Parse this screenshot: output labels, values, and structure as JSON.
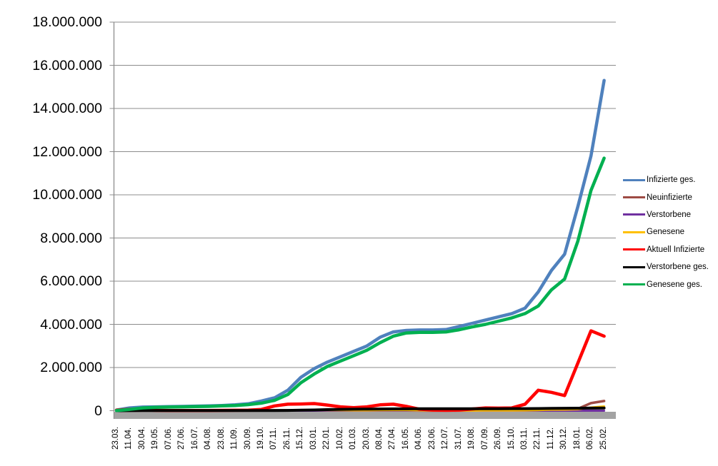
{
  "chart_data": {
    "type": "line",
    "title": "",
    "grid": true,
    "legend_position": "right",
    "x_tick_labels": [
      "23.03.",
      "11.04.",
      "30.04.",
      "19.05.",
      "07.06.",
      "27.06.",
      "16.07.",
      "04.08.",
      "23.08.",
      "11.09.",
      "30.09.",
      "19.10.",
      "07.11.",
      "26.11.",
      "15.12.",
      "03.01.",
      "22.01.",
      "10.02.",
      "01.03.",
      "20.03.",
      "08.04.",
      "27.04.",
      "16.05.",
      "04.06.",
      "23.06.",
      "12.07.",
      "31.07.",
      "19.08.",
      "07.09.",
      "26.09.",
      "15.10.",
      "03.11.",
      "22.11.",
      "11.12.",
      "30.12.",
      "18.01.",
      "06.02.",
      "25.02."
    ],
    "y_axis": {
      "min": 0,
      "max": 18000000,
      "tick_interval": 2000000,
      "tick_labels": [
        "0",
        "2.000.000",
        "4.000.000",
        "6.000.000",
        "8.000.000",
        "10.000.000",
        "12.000.000",
        "14.000.000",
        "16.000.000",
        "18.000.000"
      ]
    },
    "series": [
      {
        "name": "Infizierte ges.",
        "color": "#4F81BD",
        "line_width": 4.5,
        "values": [
          30000,
          130000,
          170000,
          180000,
          190000,
          200000,
          210000,
          220000,
          240000,
          270000,
          320000,
          450000,
          600000,
          950000,
          1550000,
          1950000,
          2250000,
          2500000,
          2750000,
          3000000,
          3400000,
          3650000,
          3720000,
          3740000,
          3740000,
          3760000,
          3900000,
          4050000,
          4200000,
          4350000,
          4500000,
          4750000,
          5500000,
          6500000,
          7250000,
          9450000,
          11800000,
          15300000
        ]
      },
      {
        "name": "Neuinfizierte",
        "color": "#9E4B44",
        "line_width": 3.5,
        "values": [
          4000,
          4000,
          2000,
          1000,
          500,
          500,
          800,
          1000,
          1200,
          1800,
          2500,
          7000,
          20000,
          18000,
          25000,
          22000,
          15000,
          9000,
          9000,
          16000,
          20000,
          18000,
          10000,
          4000,
          1000,
          1500,
          2500,
          8000,
          12000,
          8000,
          10000,
          20000,
          50000,
          60000,
          40000,
          90000,
          350000,
          450000
        ]
      },
      {
        "name": "Verstorbene",
        "color": "#7030A0",
        "line_width": 3,
        "values": [
          200,
          250,
          200,
          100,
          50,
          30,
          20,
          20,
          20,
          30,
          40,
          100,
          300,
          500,
          700,
          900,
          800,
          600,
          400,
          250,
          250,
          250,
          200,
          100,
          80,
          50,
          50,
          50,
          80,
          80,
          100,
          150,
          300,
          400,
          400,
          300,
          250,
          300
        ]
      },
      {
        "name": "Genesene",
        "color": "#FFC000",
        "line_width": 3,
        "values": [
          2000,
          4000,
          5000,
          3000,
          2000,
          1000,
          1000,
          2000,
          2000,
          2000,
          3000,
          5000,
          13000,
          18000,
          25000,
          30000,
          28000,
          20000,
          12000,
          14000,
          20000,
          25000,
          22000,
          12000,
          4000,
          2000,
          2000,
          4000,
          8000,
          8000,
          8000,
          12000,
          25000,
          45000,
          50000,
          65000,
          150000,
          200000
        ]
      },
      {
        "name": "Aktuell Infizierte",
        "color": "#FF0000",
        "line_width": 4.5,
        "values": [
          25000,
          65000,
          40000,
          17000,
          8000,
          6000,
          6000,
          9000,
          15000,
          19000,
          24000,
          60000,
          220000,
          300000,
          310000,
          330000,
          260000,
          180000,
          140000,
          180000,
          270000,
          300000,
          200000,
          70000,
          30000,
          20000,
          30000,
          80000,
          130000,
          120000,
          130000,
          300000,
          950000,
          850000,
          700000,
          2200000,
          3700000,
          3450000
        ]
      },
      {
        "name": "Verstorbene ges.",
        "color": "#000000",
        "line_width": 4,
        "values": [
          500,
          3000,
          6000,
          8000,
          9000,
          9000,
          9100,
          9200,
          9300,
          9400,
          9500,
          10000,
          11000,
          14000,
          23000,
          34000,
          50000,
          62000,
          70000,
          75000,
          78000,
          82000,
          86000,
          89000,
          90000,
          91000,
          92000,
          92500,
          93000,
          93500,
          94500,
          96000,
          99000,
          105000,
          112000,
          116000,
          119000,
          122000
        ]
      },
      {
        "name": "Genesene ges.",
        "color": "#00B050",
        "line_width": 4.5,
        "values": [
          10000,
          60000,
          130000,
          160000,
          170000,
          180000,
          190000,
          200000,
          220000,
          240000,
          280000,
          350000,
          480000,
          750000,
          1300000,
          1700000,
          2050000,
          2300000,
          2550000,
          2800000,
          3150000,
          3450000,
          3600000,
          3630000,
          3630000,
          3650000,
          3750000,
          3880000,
          4000000,
          4150000,
          4300000,
          4500000,
          4850000,
          5600000,
          6100000,
          7850000,
          10200000,
          11700000
        ]
      }
    ]
  },
  "colors": {
    "gridline": "#8C8C8C",
    "axis_line": "#8C8C8C",
    "x_axis_bar": "#A3A3A3",
    "text": "#000000",
    "background": "#FFFFFF"
  }
}
